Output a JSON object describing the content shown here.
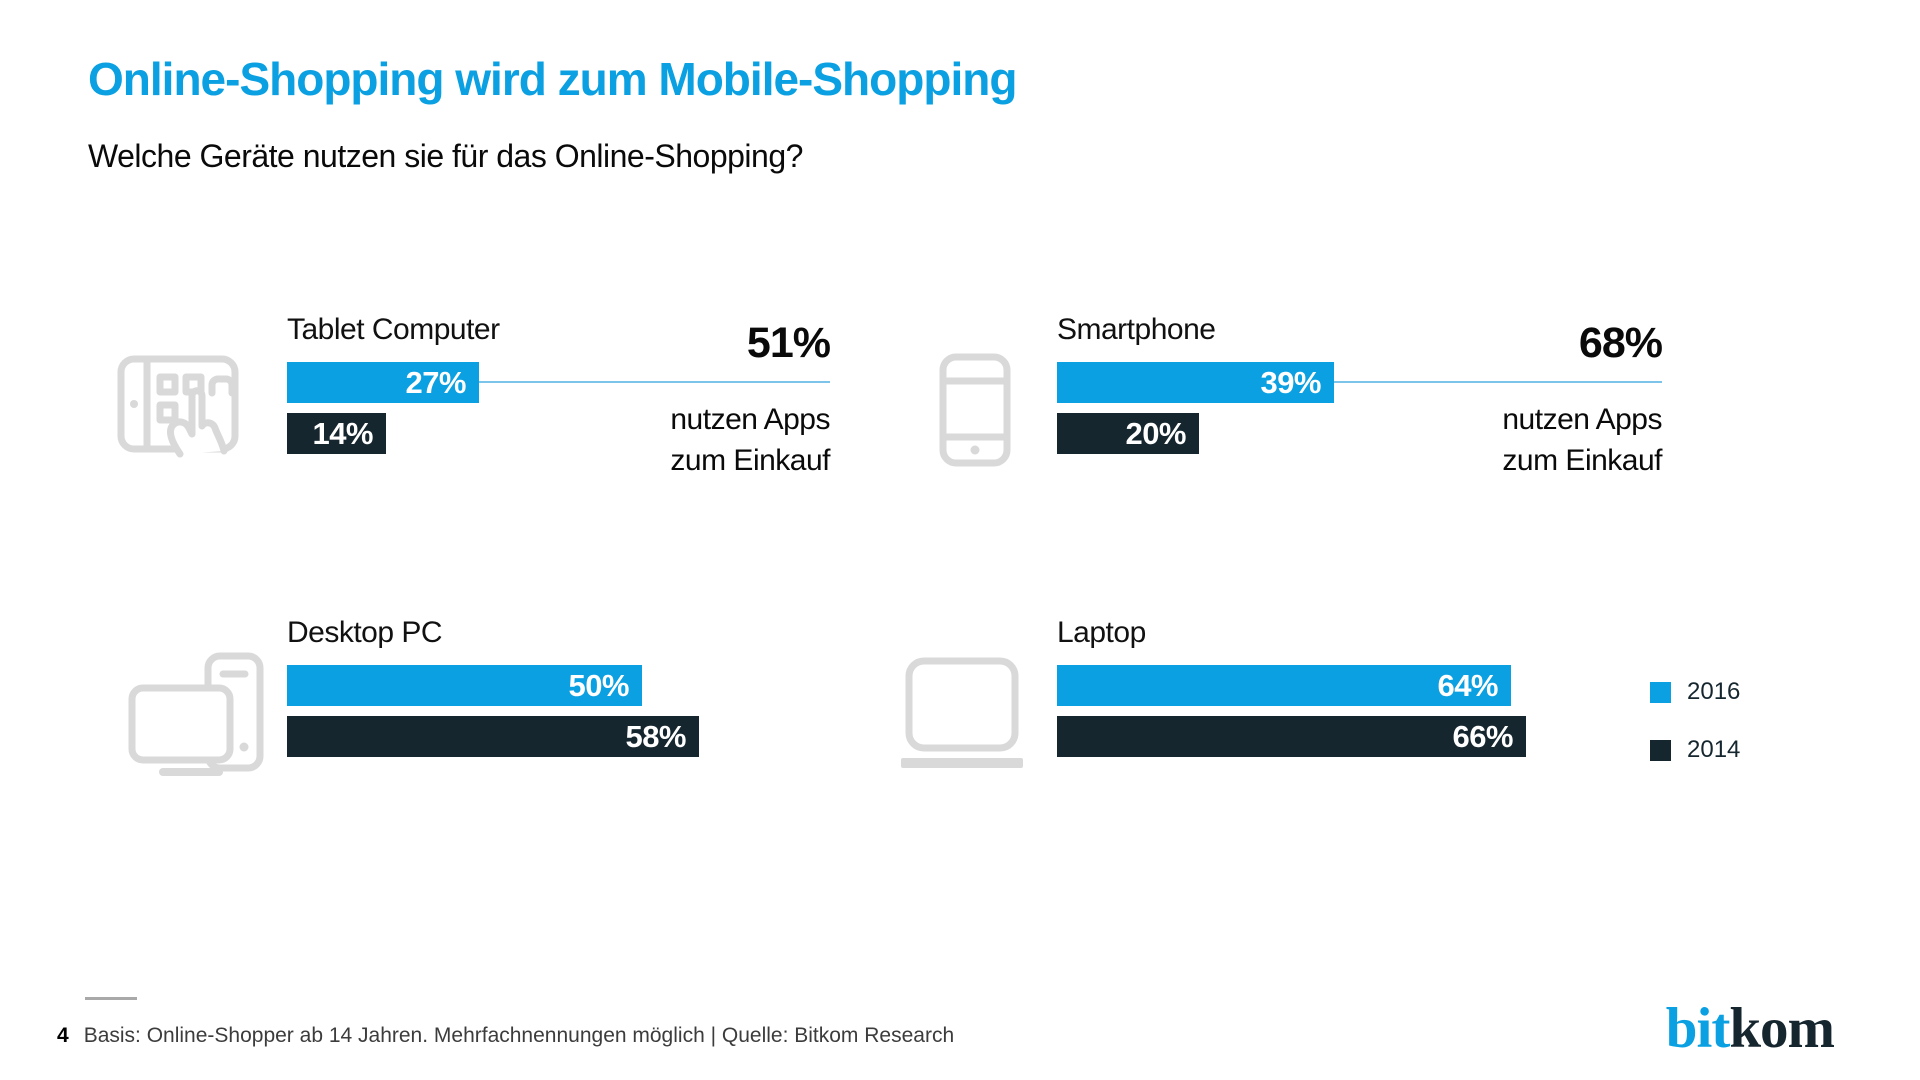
{
  "colors": {
    "accent_blue": "#0aa0e1",
    "dark_navy": "#15262f",
    "connector_blue": "#7dc4ea",
    "icon_gray": "#d9d9d9",
    "footer_gray": "#3c3c3c"
  },
  "header": {
    "title": "Online-Shopping wird zum Mobile-Shopping",
    "subtitle": "Welche Geräte nutzen sie für das Online-Shopping?"
  },
  "chart_data": {
    "type": "bar",
    "orientation": "horizontal",
    "title": "Online-Shopping wird zum Mobile-Shopping",
    "subtitle": "Welche Geräte nutzen sie für das Online-Shopping?",
    "unit": "%",
    "categories": [
      "Tablet Computer",
      "Smartphone",
      "Desktop PC",
      "Laptop"
    ],
    "series": [
      {
        "name": "2016",
        "color": "#0aa0e1",
        "values": [
          27,
          39,
          50,
          64
        ]
      },
      {
        "name": "2014",
        "color": "#15262f",
        "values": [
          14,
          20,
          58,
          66
        ]
      }
    ],
    "annotations": [
      {
        "category": "Tablet Computer",
        "value": 51,
        "text": "nutzen Apps zum Einkauf"
      },
      {
        "category": "Smartphone",
        "value": 68,
        "text": "nutzen Apps zum Einkauf"
      }
    ],
    "value_axis_visible": false,
    "xlim": [
      0,
      100
    ],
    "grid": false,
    "legend_position": "right"
  },
  "panels": [
    {
      "label": "Tablet Computer",
      "icon": "tablet-touch-icon",
      "callout_value": "51%",
      "callout_line1": "nutzen Apps",
      "callout_line2": "zum Einkauf"
    },
    {
      "label": "Smartphone",
      "icon": "smartphone-icon",
      "callout_value": "68%",
      "callout_line1": "nutzen Apps",
      "callout_line2": "zum Einkauf"
    },
    {
      "label": "Desktop PC",
      "icon": "desktop-pc-icon"
    },
    {
      "label": "Laptop",
      "icon": "laptop-icon"
    }
  ],
  "legend": {
    "items": [
      "2016",
      "2014"
    ]
  },
  "footer": {
    "page_number": "4",
    "source": "Basis: Online-Shopper ab 14 Jahren. Mehrfachnennungen möglich | Quelle: Bitkom Research"
  },
  "logo": {
    "part1": "bit",
    "part2": "kom"
  }
}
